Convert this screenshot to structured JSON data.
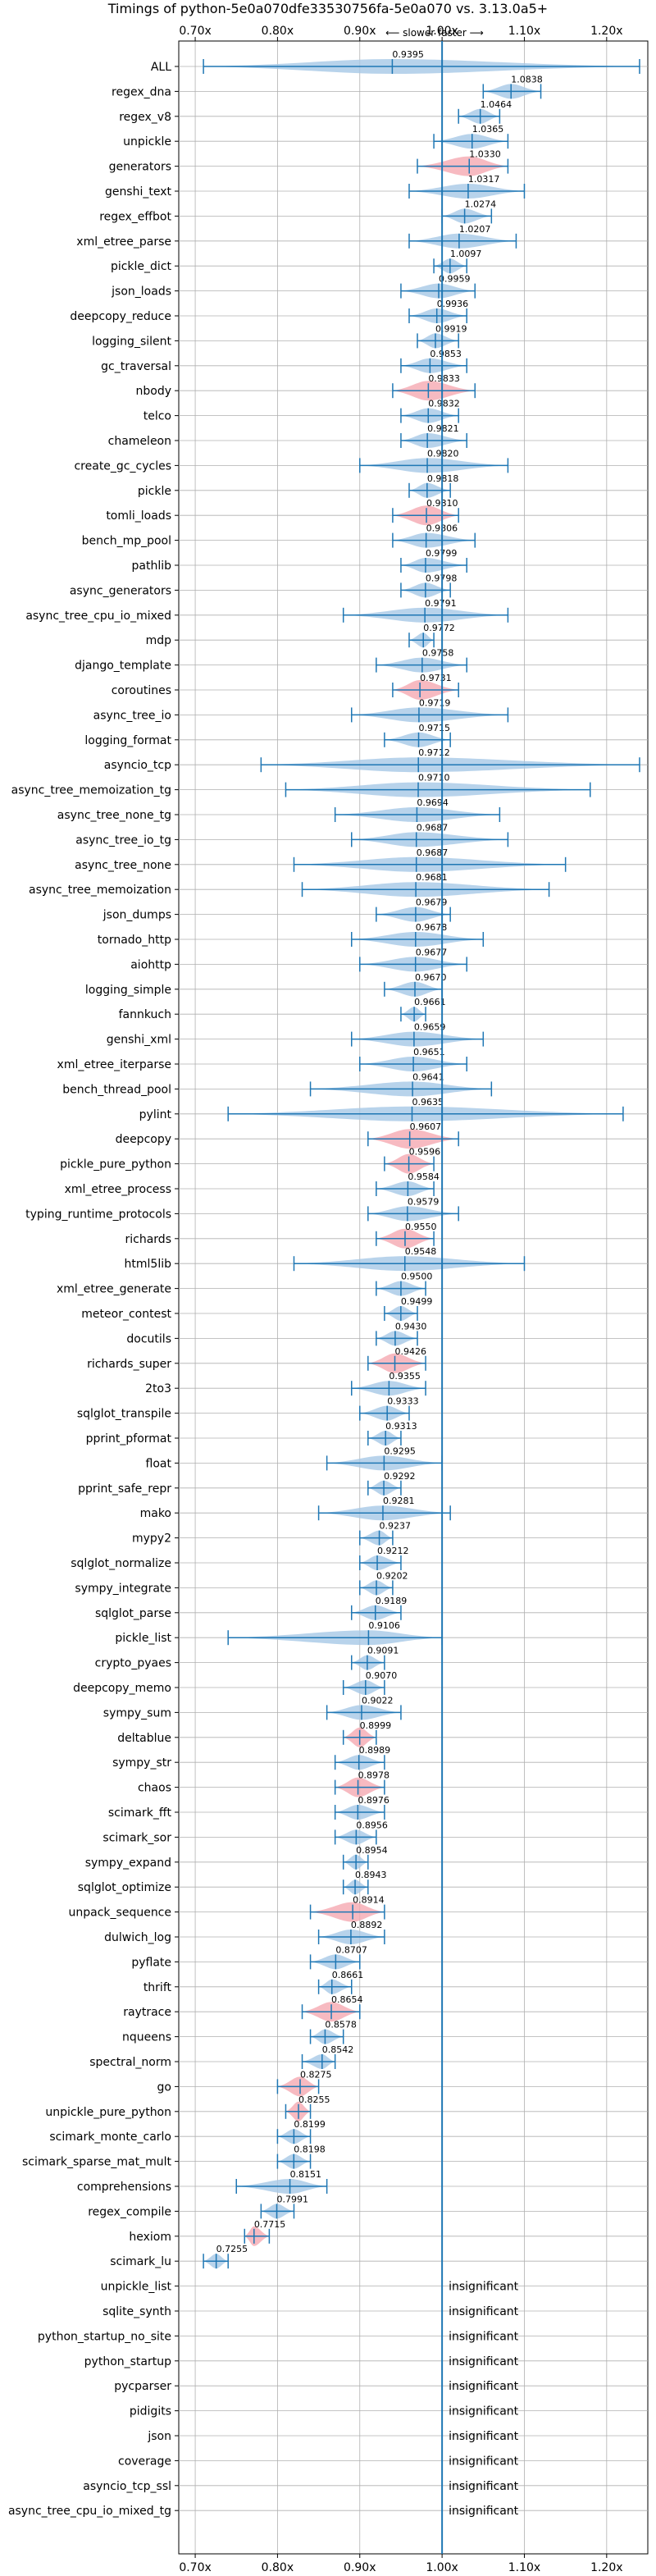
{
  "chart_data": {
    "type": "violin",
    "title": "Timings of python-5e0a070dfe33530756fa-5e0a070 vs. 3.13.0a5+",
    "direction_label": "⟵ slower   faster ⟶",
    "x_ticks": [
      "0.70x",
      "0.80x",
      "0.90x",
      "1.00x",
      "1.10x",
      "1.20x"
    ],
    "x_tick_values": [
      0.7,
      0.8,
      0.9,
      1.0,
      1.1,
      1.2
    ],
    "xlim": [
      0.68,
      1.25
    ],
    "reference_line": 1.0,
    "colors": {
      "normal": "#a6c8e6",
      "significant": "#f5a9b2",
      "whisker": "#1f77b4",
      "grid": "#b0b0b0"
    },
    "insignificant_label": "insignificant",
    "benchmarks": [
      {
        "name": "ALL",
        "value": 0.9395,
        "label": "0.9395",
        "min": 0.71,
        "max": 1.24,
        "style": "normal"
      },
      {
        "name": "regex_dna",
        "value": 1.0838,
        "label": "1.0838",
        "min": 1.05,
        "max": 1.12,
        "style": "normal"
      },
      {
        "name": "regex_v8",
        "value": 1.0464,
        "label": "1.0464",
        "min": 1.02,
        "max": 1.07,
        "style": "normal"
      },
      {
        "name": "unpickle",
        "value": 1.0365,
        "label": "1.0365",
        "min": 0.99,
        "max": 1.08,
        "style": "normal"
      },
      {
        "name": "generators",
        "value": 1.033,
        "label": "1.0330",
        "min": 0.97,
        "max": 1.08,
        "style": "significant"
      },
      {
        "name": "genshi_text",
        "value": 1.0317,
        "label": "1.0317",
        "min": 0.96,
        "max": 1.1,
        "style": "normal"
      },
      {
        "name": "regex_effbot",
        "value": 1.0274,
        "label": "1.0274",
        "min": 1.0,
        "max": 1.06,
        "style": "normal"
      },
      {
        "name": "xml_etree_parse",
        "value": 1.0207,
        "label": "1.0207",
        "min": 0.96,
        "max": 1.09,
        "style": "normal"
      },
      {
        "name": "pickle_dict",
        "value": 1.0097,
        "label": "1.0097",
        "min": 0.99,
        "max": 1.03,
        "style": "normal"
      },
      {
        "name": "json_loads",
        "value": 0.9959,
        "label": "0.9959",
        "min": 0.95,
        "max": 1.04,
        "style": "normal"
      },
      {
        "name": "deepcopy_reduce",
        "value": 0.9936,
        "label": "0.9936",
        "min": 0.96,
        "max": 1.03,
        "style": "normal"
      },
      {
        "name": "logging_silent",
        "value": 0.9919,
        "label": "0.9919",
        "min": 0.97,
        "max": 1.02,
        "style": "normal"
      },
      {
        "name": "gc_traversal",
        "value": 0.9853,
        "label": "0.9853",
        "min": 0.95,
        "max": 1.03,
        "style": "normal"
      },
      {
        "name": "nbody",
        "value": 0.9833,
        "label": "0.9833",
        "min": 0.94,
        "max": 1.04,
        "style": "significant"
      },
      {
        "name": "telco",
        "value": 0.9832,
        "label": "0.9832",
        "min": 0.95,
        "max": 1.02,
        "style": "normal"
      },
      {
        "name": "chameleon",
        "value": 0.9821,
        "label": "0.9821",
        "min": 0.95,
        "max": 1.03,
        "style": "normal"
      },
      {
        "name": "create_gc_cycles",
        "value": 0.982,
        "label": "0.9820",
        "min": 0.9,
        "max": 1.08,
        "style": "normal"
      },
      {
        "name": "pickle",
        "value": 0.9818,
        "label": "0.9818",
        "min": 0.96,
        "max": 1.01,
        "style": "normal"
      },
      {
        "name": "tomli_loads",
        "value": 0.981,
        "label": "0.9810",
        "min": 0.94,
        "max": 1.02,
        "style": "significant"
      },
      {
        "name": "bench_mp_pool",
        "value": 0.9806,
        "label": "0.9806",
        "min": 0.94,
        "max": 1.04,
        "style": "normal"
      },
      {
        "name": "pathlib",
        "value": 0.9799,
        "label": "0.9799",
        "min": 0.95,
        "max": 1.03,
        "style": "normal"
      },
      {
        "name": "async_generators",
        "value": 0.9798,
        "label": "0.9798",
        "min": 0.95,
        "max": 1.01,
        "style": "normal"
      },
      {
        "name": "async_tree_cpu_io_mixed",
        "value": 0.9791,
        "label": "0.9791",
        "min": 0.88,
        "max": 1.08,
        "style": "normal"
      },
      {
        "name": "mdp",
        "value": 0.9772,
        "label": "0.9772",
        "min": 0.96,
        "max": 0.99,
        "style": "normal"
      },
      {
        "name": "django_template",
        "value": 0.9758,
        "label": "0.9758",
        "min": 0.92,
        "max": 1.03,
        "style": "normal"
      },
      {
        "name": "coroutines",
        "value": 0.9731,
        "label": "0.9731",
        "min": 0.94,
        "max": 1.02,
        "style": "significant"
      },
      {
        "name": "async_tree_io",
        "value": 0.9719,
        "label": "0.9719",
        "min": 0.89,
        "max": 1.08,
        "style": "normal"
      },
      {
        "name": "logging_format",
        "value": 0.9715,
        "label": "0.9715",
        "min": 0.93,
        "max": 1.01,
        "style": "normal"
      },
      {
        "name": "asyncio_tcp",
        "value": 0.9712,
        "label": "0.9712",
        "min": 0.78,
        "max": 1.24,
        "style": "normal"
      },
      {
        "name": "async_tree_memoization_tg",
        "value": 0.971,
        "label": "0.9710",
        "min": 0.81,
        "max": 1.18,
        "style": "normal"
      },
      {
        "name": "async_tree_none_tg",
        "value": 0.9694,
        "label": "0.9694",
        "min": 0.87,
        "max": 1.07,
        "style": "normal"
      },
      {
        "name": "async_tree_io_tg",
        "value": 0.9687,
        "label": "0.9687",
        "min": 0.89,
        "max": 1.08,
        "style": "normal"
      },
      {
        "name": "async_tree_none",
        "value": 0.9687,
        "label": "0.9687",
        "min": 0.82,
        "max": 1.15,
        "style": "normal"
      },
      {
        "name": "async_tree_memoization",
        "value": 0.9681,
        "label": "0.9681",
        "min": 0.83,
        "max": 1.13,
        "style": "normal"
      },
      {
        "name": "json_dumps",
        "value": 0.9679,
        "label": "0.9679",
        "min": 0.92,
        "max": 1.01,
        "style": "normal"
      },
      {
        "name": "tornado_http",
        "value": 0.9678,
        "label": "0.9678",
        "min": 0.89,
        "max": 1.05,
        "style": "normal"
      },
      {
        "name": "aiohttp",
        "value": 0.9677,
        "label": "0.9677",
        "min": 0.9,
        "max": 1.03,
        "style": "normal"
      },
      {
        "name": "logging_simple",
        "value": 0.967,
        "label": "0.9670",
        "min": 0.93,
        "max": 1.0,
        "style": "normal"
      },
      {
        "name": "fannkuch",
        "value": 0.9661,
        "label": "0.9661",
        "min": 0.95,
        "max": 0.98,
        "style": "normal"
      },
      {
        "name": "genshi_xml",
        "value": 0.9659,
        "label": "0.9659",
        "min": 0.89,
        "max": 1.05,
        "style": "normal"
      },
      {
        "name": "xml_etree_iterparse",
        "value": 0.9651,
        "label": "0.9651",
        "min": 0.9,
        "max": 1.03,
        "style": "normal"
      },
      {
        "name": "bench_thread_pool",
        "value": 0.9641,
        "label": "0.9641",
        "min": 0.84,
        "max": 1.06,
        "style": "normal"
      },
      {
        "name": "pylint",
        "value": 0.9635,
        "label": "0.9635",
        "min": 0.74,
        "max": 1.22,
        "style": "normal"
      },
      {
        "name": "deepcopy",
        "value": 0.9607,
        "label": "0.9607",
        "min": 0.91,
        "max": 1.02,
        "style": "significant"
      },
      {
        "name": "pickle_pure_python",
        "value": 0.9596,
        "label": "0.9596",
        "min": 0.93,
        "max": 0.99,
        "style": "significant"
      },
      {
        "name": "xml_etree_process",
        "value": 0.9584,
        "label": "0.9584",
        "min": 0.92,
        "max": 0.99,
        "style": "normal"
      },
      {
        "name": "typing_runtime_protocols",
        "value": 0.9579,
        "label": "0.9579",
        "min": 0.91,
        "max": 1.02,
        "style": "normal"
      },
      {
        "name": "richards",
        "value": 0.955,
        "label": "0.9550",
        "min": 0.92,
        "max": 0.99,
        "style": "significant"
      },
      {
        "name": "html5lib",
        "value": 0.9548,
        "label": "0.9548",
        "min": 0.82,
        "max": 1.1,
        "style": "normal"
      },
      {
        "name": "xml_etree_generate",
        "value": 0.95,
        "label": "0.9500",
        "min": 0.92,
        "max": 0.98,
        "style": "normal"
      },
      {
        "name": "meteor_contest",
        "value": 0.9499,
        "label": "0.9499",
        "min": 0.93,
        "max": 0.97,
        "style": "normal"
      },
      {
        "name": "docutils",
        "value": 0.943,
        "label": "0.9430",
        "min": 0.92,
        "max": 0.97,
        "style": "normal"
      },
      {
        "name": "richards_super",
        "value": 0.9426,
        "label": "0.9426",
        "min": 0.91,
        "max": 0.98,
        "style": "significant"
      },
      {
        "name": "2to3",
        "value": 0.9355,
        "label": "0.9355",
        "min": 0.89,
        "max": 0.98,
        "style": "normal"
      },
      {
        "name": "sqlglot_transpile",
        "value": 0.9333,
        "label": "0.9333",
        "min": 0.9,
        "max": 0.96,
        "style": "normal"
      },
      {
        "name": "pprint_pformat",
        "value": 0.9313,
        "label": "0.9313",
        "min": 0.91,
        "max": 0.95,
        "style": "normal"
      },
      {
        "name": "float",
        "value": 0.9295,
        "label": "0.9295",
        "min": 0.86,
        "max": 1.0,
        "style": "normal"
      },
      {
        "name": "pprint_safe_repr",
        "value": 0.9292,
        "label": "0.9292",
        "min": 0.91,
        "max": 0.95,
        "style": "normal"
      },
      {
        "name": "mako",
        "value": 0.9281,
        "label": "0.9281",
        "min": 0.85,
        "max": 1.01,
        "style": "normal"
      },
      {
        "name": "mypy2",
        "value": 0.9237,
        "label": "0.9237",
        "min": 0.9,
        "max": 0.94,
        "style": "normal"
      },
      {
        "name": "sqlglot_normalize",
        "value": 0.9212,
        "label": "0.9212",
        "min": 0.9,
        "max": 0.95,
        "style": "normal"
      },
      {
        "name": "sympy_integrate",
        "value": 0.9202,
        "label": "0.9202",
        "min": 0.9,
        "max": 0.94,
        "style": "normal"
      },
      {
        "name": "sqlglot_parse",
        "value": 0.9189,
        "label": "0.9189",
        "min": 0.89,
        "max": 0.95,
        "style": "normal"
      },
      {
        "name": "pickle_list",
        "value": 0.9106,
        "label": "0.9106",
        "min": 0.74,
        "max": 1.0,
        "style": "normal"
      },
      {
        "name": "crypto_pyaes",
        "value": 0.9091,
        "label": "0.9091",
        "min": 0.89,
        "max": 0.93,
        "style": "normal"
      },
      {
        "name": "deepcopy_memo",
        "value": 0.907,
        "label": "0.9070",
        "min": 0.88,
        "max": 0.93,
        "style": "normal"
      },
      {
        "name": "sympy_sum",
        "value": 0.9022,
        "label": "0.9022",
        "min": 0.86,
        "max": 0.95,
        "style": "normal"
      },
      {
        "name": "deltablue",
        "value": 0.8999,
        "label": "0.8999",
        "min": 0.88,
        "max": 0.92,
        "style": "significant"
      },
      {
        "name": "sympy_str",
        "value": 0.8989,
        "label": "0.8989",
        "min": 0.87,
        "max": 0.93,
        "style": "normal"
      },
      {
        "name": "chaos",
        "value": 0.8978,
        "label": "0.8978",
        "min": 0.87,
        "max": 0.93,
        "style": "significant"
      },
      {
        "name": "scimark_fft",
        "value": 0.8976,
        "label": "0.8976",
        "min": 0.87,
        "max": 0.93,
        "style": "normal"
      },
      {
        "name": "scimark_sor",
        "value": 0.8956,
        "label": "0.8956",
        "min": 0.87,
        "max": 0.92,
        "style": "normal"
      },
      {
        "name": "sympy_expand",
        "value": 0.8954,
        "label": "0.8954",
        "min": 0.88,
        "max": 0.91,
        "style": "normal"
      },
      {
        "name": "sqlglot_optimize",
        "value": 0.8943,
        "label": "0.8943",
        "min": 0.88,
        "max": 0.91,
        "style": "normal"
      },
      {
        "name": "unpack_sequence",
        "value": 0.8914,
        "label": "0.8914",
        "min": 0.84,
        "max": 0.93,
        "style": "significant"
      },
      {
        "name": "dulwich_log",
        "value": 0.8892,
        "label": "0.8892",
        "min": 0.85,
        "max": 0.93,
        "style": "normal"
      },
      {
        "name": "pyflate",
        "value": 0.8707,
        "label": "0.8707",
        "min": 0.84,
        "max": 0.9,
        "style": "normal"
      },
      {
        "name": "thrift",
        "value": 0.8661,
        "label": "0.8661",
        "min": 0.85,
        "max": 0.89,
        "style": "normal"
      },
      {
        "name": "raytrace",
        "value": 0.8654,
        "label": "0.8654",
        "min": 0.83,
        "max": 0.9,
        "style": "significant"
      },
      {
        "name": "nqueens",
        "value": 0.8578,
        "label": "0.8578",
        "min": 0.84,
        "max": 0.88,
        "style": "normal"
      },
      {
        "name": "spectral_norm",
        "value": 0.8542,
        "label": "0.8542",
        "min": 0.83,
        "max": 0.87,
        "style": "normal"
      },
      {
        "name": "go",
        "value": 0.8275,
        "label": "0.8275",
        "min": 0.8,
        "max": 0.85,
        "style": "significant"
      },
      {
        "name": "unpickle_pure_python",
        "value": 0.8255,
        "label": "0.8255",
        "min": 0.81,
        "max": 0.84,
        "style": "significant"
      },
      {
        "name": "scimark_monte_carlo",
        "value": 0.8199,
        "label": "0.8199",
        "min": 0.8,
        "max": 0.84,
        "style": "normal"
      },
      {
        "name": "scimark_sparse_mat_mult",
        "value": 0.8198,
        "label": "0.8198",
        "min": 0.8,
        "max": 0.84,
        "style": "normal"
      },
      {
        "name": "comprehensions",
        "value": 0.8151,
        "label": "0.8151",
        "min": 0.75,
        "max": 0.86,
        "style": "normal"
      },
      {
        "name": "regex_compile",
        "value": 0.7991,
        "label": "0.7991",
        "min": 0.78,
        "max": 0.82,
        "style": "normal"
      },
      {
        "name": "hexiom",
        "value": 0.7715,
        "label": "0.7715",
        "min": 0.76,
        "max": 0.79,
        "style": "significant"
      },
      {
        "name": "scimark_lu",
        "value": 0.7255,
        "label": "0.7255",
        "min": 0.71,
        "max": 0.74,
        "style": "normal"
      },
      {
        "name": "unpickle_list",
        "insignificant": true
      },
      {
        "name": "sqlite_synth",
        "insignificant": true
      },
      {
        "name": "python_startup_no_site",
        "insignificant": true
      },
      {
        "name": "python_startup",
        "insignificant": true
      },
      {
        "name": "pycparser",
        "insignificant": true
      },
      {
        "name": "pidigits",
        "insignificant": true
      },
      {
        "name": "json",
        "insignificant": true
      },
      {
        "name": "coverage",
        "insignificant": true
      },
      {
        "name": "asyncio_tcp_ssl",
        "insignificant": true
      },
      {
        "name": "async_tree_cpu_io_mixed_tg",
        "insignificant": true
      }
    ]
  }
}
